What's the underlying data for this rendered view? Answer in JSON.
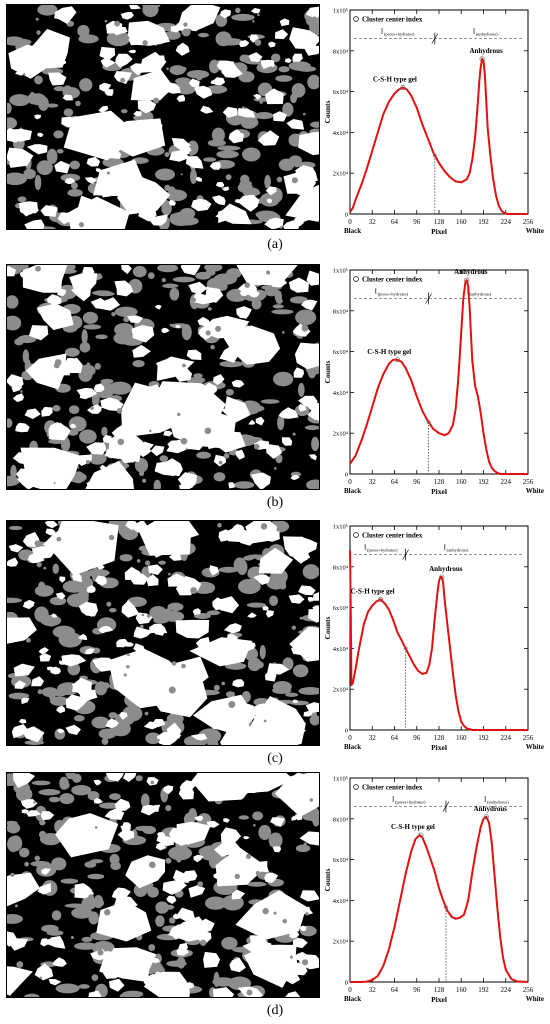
{
  "panels": [
    {
      "caption": "(a)",
      "chart_data": {
        "type": "line",
        "xlim": [
          0,
          256
        ],
        "ylim": [
          0,
          100000
        ],
        "x_ticks": [
          "0",
          "32",
          "64",
          "96",
          "128",
          "160",
          "192",
          "224",
          "256"
        ],
        "y_ticks": [
          "0",
          "2x10⁴",
          "4x10⁴",
          "6x10⁴",
          "8x10⁴",
          "1x10⁵"
        ],
        "xlabel": "Pixel",
        "ylabel": "Counts",
        "x_end_labels": {
          "left": "Black",
          "right": "White"
        },
        "legend": "Cluster center index",
        "range_labels": {
          "left": "I",
          "left_sub": "(pores+hydrates)",
          "right": "I",
          "right_sub": "(anhydrous)"
        },
        "threshold_x": 122,
        "range_line_y": 86000,
        "peaks": [
          {
            "label": "C-S-H type gel",
            "x": 76,
            "y": 62000
          },
          {
            "label": "Anhydrous",
            "x": 190,
            "y": 76000
          }
        ],
        "x": [
          0,
          4,
          8,
          16,
          24,
          32,
          40,
          48,
          56,
          64,
          70,
          76,
          82,
          88,
          96,
          104,
          112,
          120,
          128,
          136,
          144,
          152,
          160,
          168,
          172,
          176,
          180,
          184,
          186,
          188,
          190,
          192,
          194,
          196,
          198,
          202,
          206,
          210,
          214,
          218,
          222,
          226,
          230,
          240,
          256
        ],
        "y": [
          1000,
          3000,
          7000,
          14000,
          22000,
          31000,
          40000,
          49000,
          55000,
          59000,
          61000,
          62000,
          61000,
          58000,
          52000,
          44000,
          37000,
          30000,
          25000,
          21000,
          18000,
          16000,
          15500,
          17000,
          20000,
          27000,
          38000,
          55000,
          65000,
          72000,
          76000,
          75000,
          68000,
          55000,
          42000,
          28000,
          17000,
          9000,
          4000,
          1500,
          500,
          0,
          0,
          0,
          0
        ]
      }
    },
    {
      "caption": "(b)",
      "chart_data": {
        "type": "line",
        "xlim": [
          0,
          256
        ],
        "ylim": [
          0,
          100000
        ],
        "x_ticks": [
          "0",
          "32",
          "64",
          "96",
          "128",
          "160",
          "192",
          "224",
          "256"
        ],
        "y_ticks": [
          "0",
          "2x10⁴",
          "4x10⁴",
          "6x10⁴",
          "8x10⁴",
          "1x10⁵"
        ],
        "xlabel": "Pixel",
        "ylabel": "Counts",
        "x_end_labels": {
          "left": "Black",
          "right": "White"
        },
        "legend": "Cluster center index",
        "range_labels": {
          "left": "I",
          "left_sub": "(pores+hydrates)",
          "right": "I",
          "right_sub": "(anhydrous)"
        },
        "threshold_x": 113,
        "range_line_y": 86000,
        "peaks": [
          {
            "label": "C-S-H type gel",
            "x": 68,
            "y": 56000
          },
          {
            "label": "Anhydrous",
            "x": 168,
            "y": 95000
          }
        ],
        "x": [
          0,
          8,
          16,
          24,
          32,
          40,
          48,
          56,
          62,
          68,
          74,
          80,
          88,
          96,
          104,
          112,
          120,
          128,
          136,
          142,
          148,
          152,
          156,
          160,
          163,
          166,
          168,
          170,
          172,
          174,
          176,
          180,
          184,
          188,
          192,
          196,
          200,
          204,
          208,
          212,
          216,
          224,
          256
        ],
        "y": [
          5000,
          9000,
          16000,
          24000,
          33000,
          42000,
          49000,
          54000,
          56000,
          56000,
          55000,
          52000,
          46000,
          38000,
          31000,
          26000,
          22000,
          20000,
          19000,
          20000,
          24000,
          32000,
          48000,
          70000,
          86000,
          94000,
          95000,
          92000,
          82000,
          68000,
          55000,
          43000,
          38000,
          30000,
          20000,
          12000,
          6000,
          3000,
          1500,
          500,
          0,
          0,
          0
        ]
      }
    },
    {
      "caption": "(c)",
      "chart_data": {
        "type": "line",
        "xlim": [
          0,
          256
        ],
        "ylim": [
          0,
          100000
        ],
        "x_ticks": [
          "0",
          "32",
          "64",
          "96",
          "128",
          "160",
          "192",
          "224",
          "256"
        ],
        "y_ticks": [
          "0",
          "2x10⁴",
          "4x10⁴",
          "6x10⁴",
          "8x10⁴",
          "1x10⁵"
        ],
        "xlabel": "Pixel",
        "ylabel": "Counts",
        "x_end_labels": {
          "left": "Black",
          "right": "White"
        },
        "legend": "Cluster center index",
        "range_labels": {
          "left": "I",
          "left_sub": "(pores+hydrates)",
          "right": "I",
          "right_sub": "(anhydrous)"
        },
        "threshold_x": 80,
        "range_line_y": 86000,
        "peaks": [
          {
            "label": "C-S-H type gel",
            "x": 44,
            "y": 64000
          },
          {
            "label": "Anhydrous",
            "x": 132,
            "y": 75000
          }
        ],
        "x": [
          0,
          1,
          2,
          4,
          8,
          12,
          16,
          20,
          26,
          32,
          38,
          44,
          50,
          56,
          62,
          68,
          74,
          80,
          86,
          92,
          98,
          104,
          110,
          114,
          118,
          122,
          126,
          128,
          130,
          132,
          134,
          136,
          140,
          144,
          148,
          152,
          156,
          160,
          164,
          168,
          176,
          192,
          256
        ],
        "y": [
          88000,
          62000,
          22000,
          23000,
          30000,
          38000,
          45000,
          52000,
          58000,
          61000,
          63000,
          64000,
          62000,
          59000,
          54000,
          48000,
          44000,
          40000,
          36000,
          32000,
          29000,
          27500,
          28000,
          32000,
          40000,
          55000,
          68000,
          73000,
          75000,
          75000,
          72000,
          64000,
          52000,
          40000,
          28000,
          17000,
          9000,
          4000,
          2000,
          800,
          0,
          0,
          0
        ]
      }
    },
    {
      "caption": "(d)",
      "chart_data": {
        "type": "line",
        "xlim": [
          0,
          256
        ],
        "ylim": [
          0,
          100000
        ],
        "x_ticks": [
          "0",
          "32",
          "64",
          "96",
          "128",
          "160",
          "192",
          "224",
          "256"
        ],
        "y_ticks": [
          "0",
          "2x10⁴",
          "4x10⁴",
          "6x10⁴",
          "8x10⁴",
          "1x10⁵"
        ],
        "xlabel": "Pixel",
        "ylabel": "Counts",
        "x_end_labels": {
          "left": "Black",
          "right": "White"
        },
        "legend": "Cluster center index",
        "range_labels": {
          "left": "I",
          "left_sub": "(pores+hydrates)",
          "right": "I",
          "right_sub": "(anhydrous)"
        },
        "threshold_x": 138,
        "range_line_y": 86000,
        "peaks": [
          {
            "label": "C-S-H type gel",
            "x": 102,
            "y": 72000
          },
          {
            "label": "Anhydrous",
            "x": 196,
            "y": 81000
          }
        ],
        "x": [
          0,
          16,
          24,
          32,
          40,
          48,
          56,
          64,
          72,
          80,
          88,
          94,
          100,
          104,
          110,
          116,
          122,
          128,
          134,
          140,
          146,
          152,
          158,
          164,
          170,
          176,
          182,
          188,
          192,
          196,
          200,
          204,
          208,
          212,
          216,
          220,
          224,
          232,
          240,
          256
        ],
        "y": [
          0,
          0,
          200,
          1000,
          3000,
          8000,
          16000,
          27000,
          40000,
          53000,
          64000,
          70000,
          72000,
          71000,
          66000,
          60000,
          54000,
          46000,
          40000,
          35000,
          32000,
          31000,
          31500,
          33000,
          40000,
          54000,
          66000,
          76000,
          80000,
          81000,
          78000,
          68000,
          52000,
          36000,
          22000,
          12000,
          6000,
          1500,
          300,
          0
        ]
      }
    }
  ],
  "colors": {
    "curve": "#e31010",
    "particle": "#ffffff",
    "mid": "#8c8c8c",
    "pore": "#000000"
  }
}
